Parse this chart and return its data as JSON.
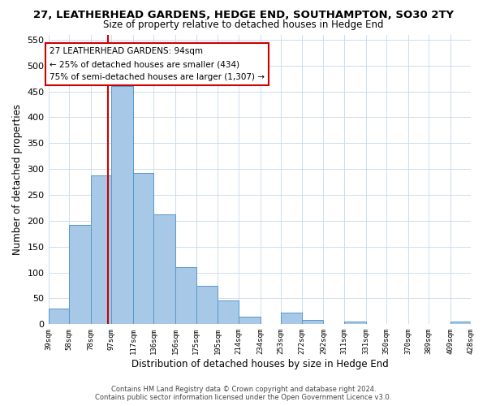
{
  "title": "27, LEATHERHEAD GARDENS, HEDGE END, SOUTHAMPTON, SO30 2TY",
  "subtitle": "Size of property relative to detached houses in Hedge End",
  "xlabel": "Distribution of detached houses by size in Hedge End",
  "ylabel": "Number of detached properties",
  "footer_line1": "Contains HM Land Registry data © Crown copyright and database right 2024.",
  "footer_line2": "Contains public sector information licensed under the Open Government Licence v3.0.",
  "annotation_line1": "27 LEATHERHEAD GARDENS: 94sqm",
  "annotation_line2": "← 25% of detached houses are smaller (434)",
  "annotation_line3": "75% of semi-detached houses are larger (1,307) →",
  "bar_edges": [
    39,
    58,
    78,
    97,
    117,
    136,
    156,
    175,
    195,
    214,
    234,
    253,
    272,
    292,
    311,
    331,
    350,
    370,
    389,
    409,
    428
  ],
  "bar_heights": [
    30,
    192,
    287,
    460,
    292,
    213,
    110,
    74,
    46,
    14,
    0,
    22,
    8,
    0,
    5,
    0,
    0,
    0,
    0,
    5
  ],
  "bar_color": "#a8c8e8",
  "bar_edge_color": "#5599cc",
  "vline_x": 94,
  "vline_color": "#cc0000",
  "ylim": [
    0,
    560
  ],
  "yticks": [
    0,
    50,
    100,
    150,
    200,
    250,
    300,
    350,
    400,
    450,
    500,
    550
  ],
  "xtick_labels": [
    "39sqm",
    "58sqm",
    "78sqm",
    "97sqm",
    "117sqm",
    "136sqm",
    "156sqm",
    "175sqm",
    "195sqm",
    "214sqm",
    "234sqm",
    "253sqm",
    "272sqm",
    "292sqm",
    "311sqm",
    "331sqm",
    "350sqm",
    "370sqm",
    "389sqm",
    "409sqm",
    "428sqm"
  ],
  "background_color": "#ffffff",
  "grid_color": "#ccddee"
}
